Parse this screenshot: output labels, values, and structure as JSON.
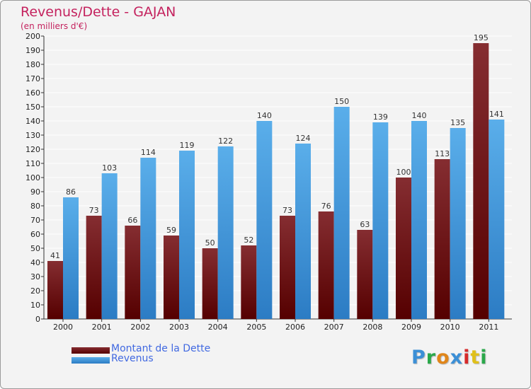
{
  "header": {
    "title": "Revenus/Dette - GAJAN",
    "subtitle": "(en milliers d'€)"
  },
  "legend": {
    "debt_label": "Montant de la Dette",
    "revenue_label": "Revenus"
  },
  "logo": {
    "text": "Proxiti",
    "letters": [
      "P",
      "r",
      "o",
      "x",
      "i",
      "t",
      "i"
    ],
    "letter_colors": [
      "#3b8fd6",
      "#2aa84a",
      "#e0861a",
      "#3b8fd6",
      "#d62a2a",
      "#e0c01a",
      "#2aa84a"
    ]
  },
  "colors": {
    "debt_top": "#852d31",
    "debt_bottom": "#550000",
    "revenue_top": "#5aaeea",
    "revenue_bottom": "#2c7cc4",
    "title": "#c4225e",
    "legend_text": "#4169e1"
  },
  "chart_data": {
    "type": "bar",
    "title": "Revenus/Dette - GAJAN",
    "ylabel": "(en milliers d'€)",
    "xlabel": "",
    "categories": [
      "2000",
      "2001",
      "2002",
      "2003",
      "2004",
      "2005",
      "2006",
      "2007",
      "2008",
      "2009",
      "2010",
      "2011"
    ],
    "series": [
      {
        "name": "Montant de la Dette",
        "values": [
          41,
          73,
          66,
          59,
          50,
          52,
          73,
          76,
          63,
          100,
          113,
          195
        ]
      },
      {
        "name": "Revenus",
        "values": [
          86,
          103,
          114,
          119,
          122,
          140,
          124,
          150,
          139,
          140,
          135,
          141
        ]
      }
    ],
    "ylim": [
      0,
      200
    ],
    "yticks": [
      0,
      10,
      20,
      30,
      40,
      50,
      60,
      70,
      80,
      90,
      100,
      110,
      120,
      130,
      140,
      150,
      160,
      170,
      180,
      190,
      200
    ],
    "grid": true,
    "legend_position": "bottom-left"
  }
}
